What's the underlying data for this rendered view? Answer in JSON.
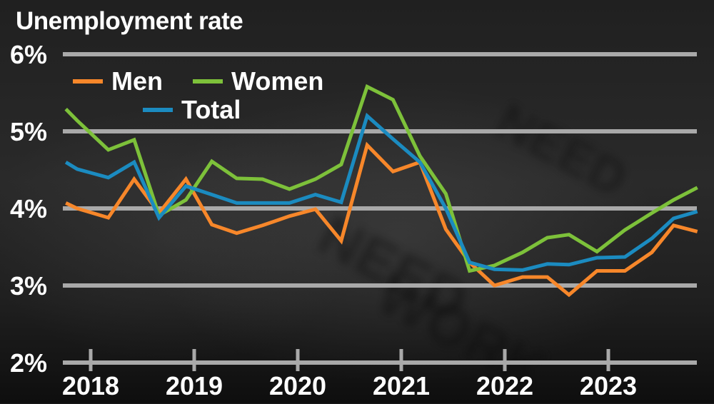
{
  "chart_data": {
    "type": "line",
    "title": "Unemployment rate",
    "xlabel": "",
    "ylabel": "",
    "ylim": [
      2,
      6
    ],
    "y_ticks": [
      "2%",
      "3%",
      "4%",
      "5%",
      "6%"
    ],
    "y_tick_values": [
      2,
      3,
      4,
      5,
      6
    ],
    "x_ticks": [
      "2018",
      "2019",
      "2020",
      "2021",
      "2022",
      "2023"
    ],
    "grid": "horizontal",
    "legend_position": "top-left",
    "x": [
      2017.76,
      2017.87,
      2018.17,
      2018.42,
      2018.66,
      2018.92,
      2019.17,
      2019.41,
      2019.66,
      2019.92,
      2020.17,
      2020.42,
      2020.67,
      2020.92,
      2021.18,
      2021.43,
      2021.66,
      2021.9,
      2022.17,
      2022.41,
      2022.62,
      2022.89,
      2023.16,
      2023.42,
      2023.63,
      2023.86
    ],
    "series": [
      {
        "name": "Men",
        "color": "#f7872a",
        "values": [
          4.07,
          4.0,
          3.88,
          4.38,
          3.94,
          4.38,
          3.79,
          3.68,
          3.78,
          3.9,
          3.99,
          3.58,
          4.82,
          4.48,
          4.6,
          3.73,
          3.3,
          3.0,
          3.11,
          3.11,
          2.88,
          3.19,
          3.19,
          3.43,
          3.78,
          3.7
        ]
      },
      {
        "name": "Women",
        "color": "#7dc13a",
        "values": [
          5.29,
          5.14,
          4.76,
          4.89,
          3.91,
          4.11,
          4.61,
          4.39,
          4.38,
          4.25,
          4.38,
          4.57,
          5.58,
          5.41,
          4.68,
          4.19,
          3.19,
          3.26,
          3.43,
          3.62,
          3.66,
          3.44,
          3.72,
          3.94,
          4.11,
          4.27
        ]
      },
      {
        "name": "Total",
        "color": "#1b8bc0",
        "values": [
          4.6,
          4.51,
          4.4,
          4.6,
          3.88,
          4.29,
          4.18,
          4.07,
          4.07,
          4.07,
          4.18,
          4.08,
          5.2,
          4.9,
          4.6,
          4.0,
          3.3,
          3.21,
          3.2,
          3.28,
          3.27,
          3.36,
          3.37,
          3.61,
          3.87,
          3.96
        ]
      }
    ]
  },
  "legend": {
    "men": "Men",
    "women": "Women",
    "total": "Total"
  },
  "colors": {
    "men": "#f7872a",
    "women": "#7dc13a",
    "total": "#1b8bc0",
    "grid": "#a9a9a9",
    "text": "#ffffff"
  },
  "background_text": [
    "NEED",
    "WORK"
  ]
}
